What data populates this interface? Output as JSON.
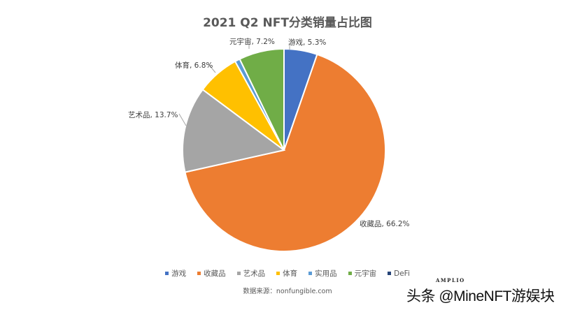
{
  "chart_data": {
    "type": "pie",
    "title": "2021 Q2 NFT分类销量占比图",
    "categories": [
      "游戏",
      "收藏品",
      "艺术品",
      "体育",
      "实用品",
      "元宇宙",
      "DeFi"
    ],
    "values": [
      5.3,
      66.2,
      13.7,
      6.8,
      0.8,
      7.2,
      0.0
    ],
    "colors": [
      "#4472C4",
      "#ED7D31",
      "#A5A5A5",
      "#FFC000",
      "#5B9BD5",
      "#70AD47",
      "#264478"
    ],
    "data_labels": [
      "游戏, 5.3%",
      "收藏品, 66.2%",
      "艺术品, 13.7%",
      "体育, 6.8%",
      "",
      "元宇宙, 7.2%",
      ""
    ],
    "start_angle": "12 o'clock, clockwise",
    "legend_position": "bottom"
  },
  "title": "2021 Q2 NFT分类销量占比图",
  "labels": {
    "youxi": "游戏, 5.3%",
    "shoucang": "收藏品, 66.2%",
    "yishu": "艺术品, 13.7%",
    "tiyu": "体育, 6.8%",
    "yuanyuzhou": "元宇宙, 7.2%"
  },
  "legend": [
    {
      "label": "游戏",
      "color": "#4472C4"
    },
    {
      "label": "收藏品",
      "color": "#ED7D31"
    },
    {
      "label": "艺术品",
      "color": "#A5A5A5"
    },
    {
      "label": "体育",
      "color": "#FFC000"
    },
    {
      "label": "实用品",
      "color": "#5B9BD5"
    },
    {
      "label": "元宇宙",
      "color": "#70AD47"
    },
    {
      "label": "DeFi",
      "color": "#264478"
    }
  ],
  "source": "数据来源：nonfungible.com",
  "watermark": {
    "brand": "AMPLIO",
    "text": "头条 @MineNFT游娱块"
  }
}
